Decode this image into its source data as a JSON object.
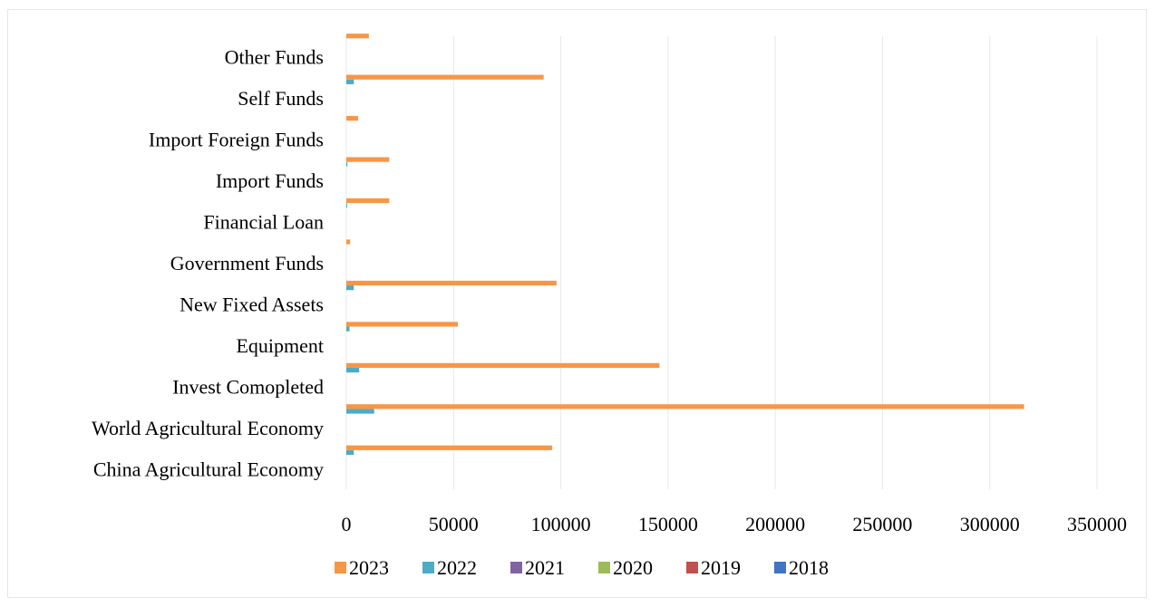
{
  "chart_data": {
    "type": "bar",
    "orientation": "horizontal",
    "categories": [
      "China Agricultural Economy",
      "World Agricultural Economy",
      "Invest Comopleted",
      "Equipment",
      "New Fixed Assets",
      "Government Funds",
      "Financial Loan",
      "Import Funds",
      "Import Foreign Funds",
      "Self Funds",
      "Other Funds"
    ],
    "series": [
      {
        "name": "2018",
        "color": "#4472C4",
        "values": [
          0,
          0,
          0,
          0,
          0,
          0,
          0,
          0,
          0,
          0,
          0
        ]
      },
      {
        "name": "2019",
        "color": "#C0504D",
        "values": [
          0,
          0,
          0,
          0,
          0,
          0,
          0,
          0,
          0,
          0,
          0
        ]
      },
      {
        "name": "2020",
        "color": "#9BBB59",
        "values": [
          0,
          0,
          0,
          0,
          0,
          0,
          0,
          0,
          0,
          0,
          0
        ]
      },
      {
        "name": "2021",
        "color": "#8064A2",
        "values": [
          0,
          0,
          0,
          0,
          0,
          0,
          0,
          0,
          0,
          0,
          0
        ]
      },
      {
        "name": "2022",
        "color": "#4BACC6",
        "values": [
          3500,
          13000,
          6000,
          1500,
          3500,
          0,
          400,
          500,
          0,
          3500,
          0
        ]
      },
      {
        "name": "2023",
        "color": "#F79646",
        "values": [
          96000,
          316000,
          146000,
          52000,
          98000,
          1800,
          20000,
          20000,
          5500,
          92000,
          10500
        ]
      }
    ],
    "xlim": [
      0,
      350000
    ],
    "x_ticks": [
      "0",
      "50000",
      "100000",
      "150000",
      "200000",
      "250000",
      "300000",
      "350000"
    ],
    "legend_order": [
      "2023",
      "2022",
      "2021",
      "2020",
      "2019",
      "2018"
    ],
    "legend_position": "bottom",
    "grid": "vertical"
  }
}
